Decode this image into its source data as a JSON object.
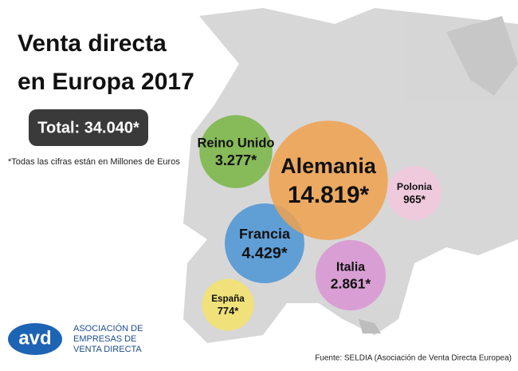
{
  "chart_data": {
    "type": "bubble",
    "title": "Venta directa",
    "subtitle": "en Europa 2017",
    "total": "Total: 34.040*",
    "note": "*Todas las cifras están en Millones de Euros",
    "categories": [
      "Reino Unido",
      "Alemania",
      "Polonia",
      "Francia",
      "Italia",
      "España"
    ],
    "values": [
      3277,
      14819,
      965,
      4429,
      2861,
      774
    ],
    "value_labels": [
      "3.277*",
      "14.819*",
      "965*",
      "4.429*",
      "2.861*",
      "774*"
    ],
    "colors": [
      "#79b543",
      "#f0a14e",
      "#f3c8de",
      "#4b94d6",
      "#d995d3",
      "#f4e36a"
    ],
    "logo": "avd",
    "org": [
      "ASOCIACIÓN DE",
      "EMPRESAS DE",
      "VENTA DIRECTA"
    ],
    "source": "Fuente: SELDIA (Asociación de Venta Directa Europea)"
  }
}
